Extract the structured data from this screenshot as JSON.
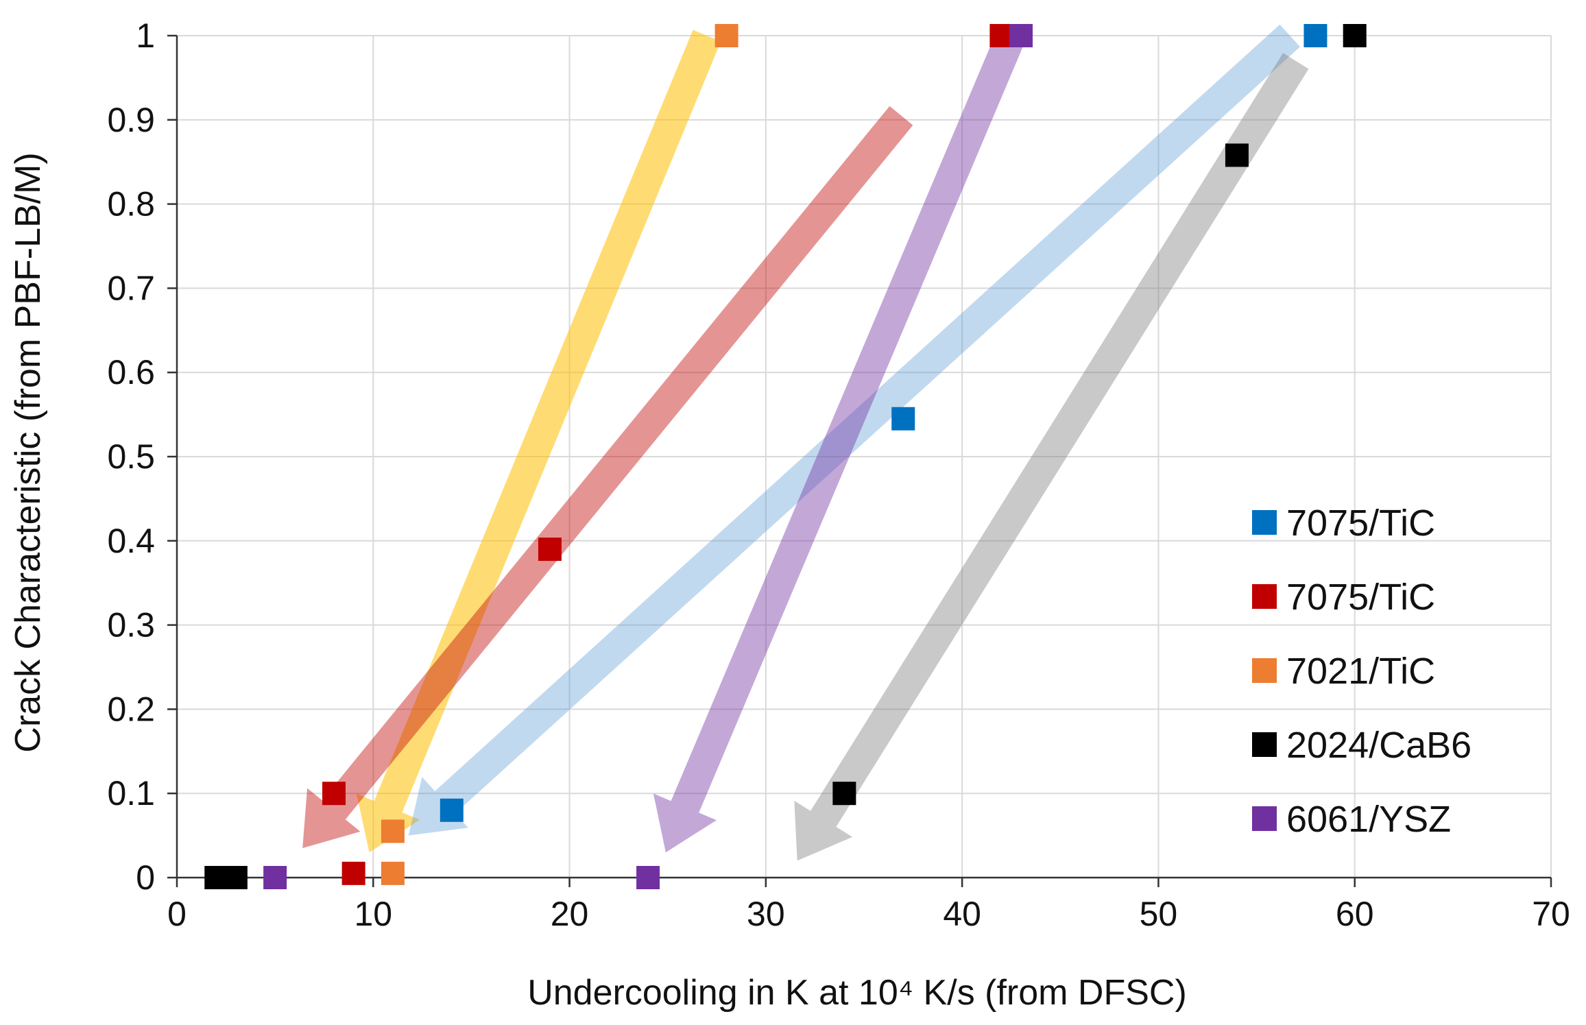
{
  "chart_data": {
    "type": "scatter",
    "title": "",
    "xlabel": "Undercooling in K at 10⁴ K/s (from DFSC)",
    "ylabel": "Crack Characteristic (from PBF-LB/M)",
    "xlim": [
      0,
      70
    ],
    "ylim": [
      0,
      1
    ],
    "x_ticks": [
      0,
      10,
      20,
      30,
      40,
      50,
      60,
      70
    ],
    "y_ticks": [
      0,
      0.1,
      0.2,
      0.3,
      0.4,
      0.5,
      0.6,
      0.7,
      0.8,
      0.9,
      1
    ],
    "x_tick_labels": [
      "0",
      "10",
      "20",
      "30",
      "40",
      "50",
      "60",
      "70"
    ],
    "y_tick_labels": [
      "0",
      "0.1",
      "0.2",
      "0.3",
      "0.4",
      "0.5",
      "0.6",
      "0.7",
      "0.8",
      "0.9",
      "1"
    ],
    "grid": true,
    "legend_position": "right",
    "series": [
      {
        "name": "7075/TiC",
        "color": "#0070c0",
        "points": [
          [
            58,
            1
          ],
          [
            37,
            0.545
          ],
          [
            14,
            0.08
          ]
        ]
      },
      {
        "name": "7075/TiC",
        "color": "#c00000",
        "points": [
          [
            42,
            1
          ],
          [
            19,
            0.39
          ],
          [
            8,
            0.1
          ],
          [
            9,
            0.005
          ]
        ]
      },
      {
        "name": "7021/TiC",
        "color": "#ed7d31",
        "points": [
          [
            28,
            1
          ],
          [
            11,
            0.055
          ],
          [
            11,
            0.005
          ]
        ]
      },
      {
        "name": "2024/CaB6",
        "color": "#000000",
        "points": [
          [
            60,
            1
          ],
          [
            54,
            0.858
          ],
          [
            34,
            0.1
          ],
          [
            2,
            0
          ],
          [
            3,
            0
          ]
        ]
      },
      {
        "name": "6061/YSZ",
        "color": "#7030a0",
        "points": [
          [
            43,
            1
          ],
          [
            5,
            0
          ],
          [
            24,
            0
          ]
        ]
      }
    ],
    "trend_arrows": [
      {
        "color": "#ffc000",
        "opacity": 0.55,
        "from": [
          27,
          1
        ],
        "to": [
          9.8,
          0.03
        ]
      },
      {
        "color": "#c00000",
        "opacity": 0.42,
        "from": [
          36.9,
          0.905
        ],
        "to": [
          6.4,
          0.035
        ]
      },
      {
        "color": "#5b9bd5",
        "opacity": 0.38,
        "from": [
          56.7,
          1
        ],
        "to": [
          11.8,
          0.05
        ]
      },
      {
        "color": "#7030a0",
        "opacity": 0.42,
        "from": [
          42.5,
          1
        ],
        "to": [
          24.9,
          0.03
        ]
      },
      {
        "color": "#7f7f7f",
        "opacity": 0.42,
        "from": [
          57,
          0.97
        ],
        "to": [
          31.6,
          0.02
        ]
      }
    ]
  }
}
